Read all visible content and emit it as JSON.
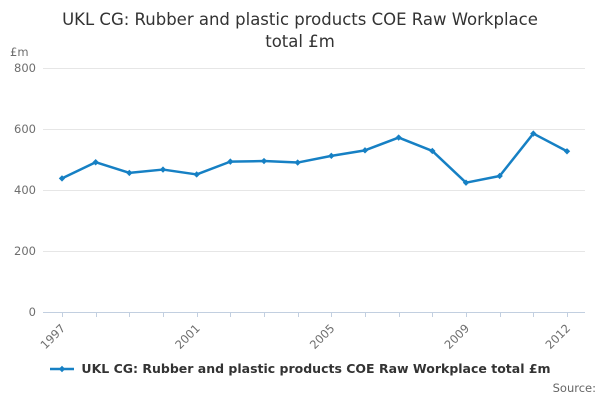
{
  "title": {
    "full": "UKL CG: Rubber and plastic products COE Raw Workplace total £m",
    "line1": "UKL CG: Rubber and plastic products COE Raw Workplace",
    "line2": "total £m"
  },
  "y_axis_unit_label": "£m",
  "source_label": "Source:",
  "legend": {
    "label": "UKL CG: Rubber and plastic products COE Raw Workplace total £m"
  },
  "colors": {
    "line": "#1680c4",
    "grid": "#e6e6e6",
    "axis": "#c2cfe0",
    "tick_label": "#6e6e6e",
    "title_text": "#333333",
    "legend_text": "#333333",
    "source_text": "#666666"
  },
  "chart_data": {
    "type": "line",
    "title": "UKL CG: Rubber and plastic products COE Raw Workplace total £m",
    "xlabel": "",
    "ylabel": "£m",
    "x": [
      1997,
      1998,
      1999,
      2000,
      2001,
      2002,
      2003,
      2004,
      2005,
      2006,
      2007,
      2008,
      2009,
      2010,
      2011,
      2012
    ],
    "series": [
      {
        "name": "UKL CG: Rubber and plastic products COE Raw Workplace total £m",
        "values": [
          438,
          491,
          456,
          467,
          451,
          493,
          495,
          490,
          512,
          530,
          572,
          528,
          424,
          446,
          585,
          527
        ]
      }
    ],
    "ylim": [
      0,
      800
    ],
    "yticks": [
      0,
      200,
      400,
      600,
      800
    ],
    "xtick_labels": [
      "1997",
      "2001",
      "2005",
      "2009",
      "2012"
    ],
    "xtick_label_rotation": -45,
    "grid": true,
    "legend_position": "bottom",
    "marker": "diamond"
  }
}
